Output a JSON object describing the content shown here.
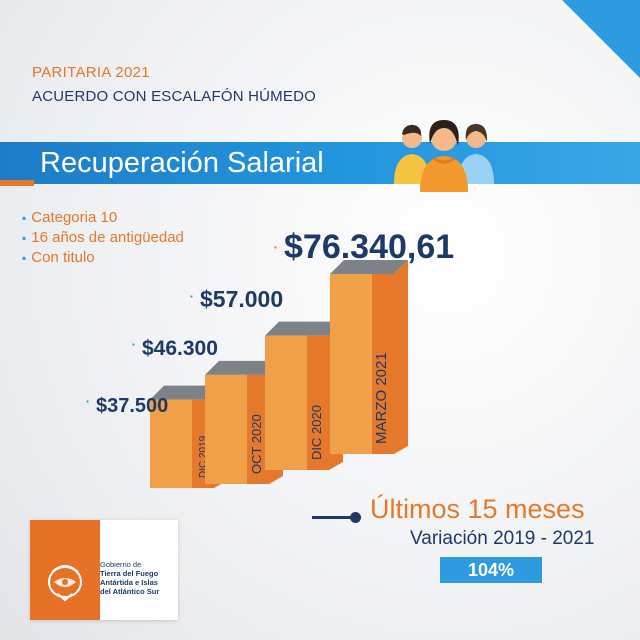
{
  "header": {
    "supertitle": "PARITARIA 2021",
    "subtitle": "ACUERDO CON ESCALAFÓN HÚMEDO"
  },
  "banner": {
    "title": "Recuperación Salarial"
  },
  "bullets": [
    "Categoria 10",
    "16 años de antigüedad",
    "Con titulo"
  ],
  "chart_data": {
    "type": "bar",
    "categories": [
      "DIC 2019",
      "OCT 2020",
      "DIC 2020",
      "MARZO 2021"
    ],
    "values": [
      37500,
      46300,
      57000,
      76340.61
    ],
    "value_labels": [
      "$37.500",
      "$46.300",
      "$57.000",
      "$76.340,61"
    ],
    "title": "",
    "xlabel": "",
    "ylabel": "",
    "style": "3d-columns",
    "colors": {
      "front": "#f0a048",
      "side": "#e5782a",
      "top": "#7d8188",
      "label": "#1d3a67",
      "accent": "#e5782a"
    }
  },
  "footer": {
    "period_label": "Últimos 15 meses",
    "variation_label": "Variación 2019 - 2021",
    "variation_value": "104%"
  },
  "logo": {
    "lines": [
      "Gobierno de",
      "Tierra del Fuego",
      "Antártida e Islas",
      "del Atlántico Sur"
    ]
  },
  "icons": {
    "people": "people-group-icon",
    "emblem": "province-emblem-icon"
  },
  "colors": {
    "brand_orange": "#e5782a",
    "brand_blue": "#2396de",
    "navy": "#1d3a67"
  }
}
